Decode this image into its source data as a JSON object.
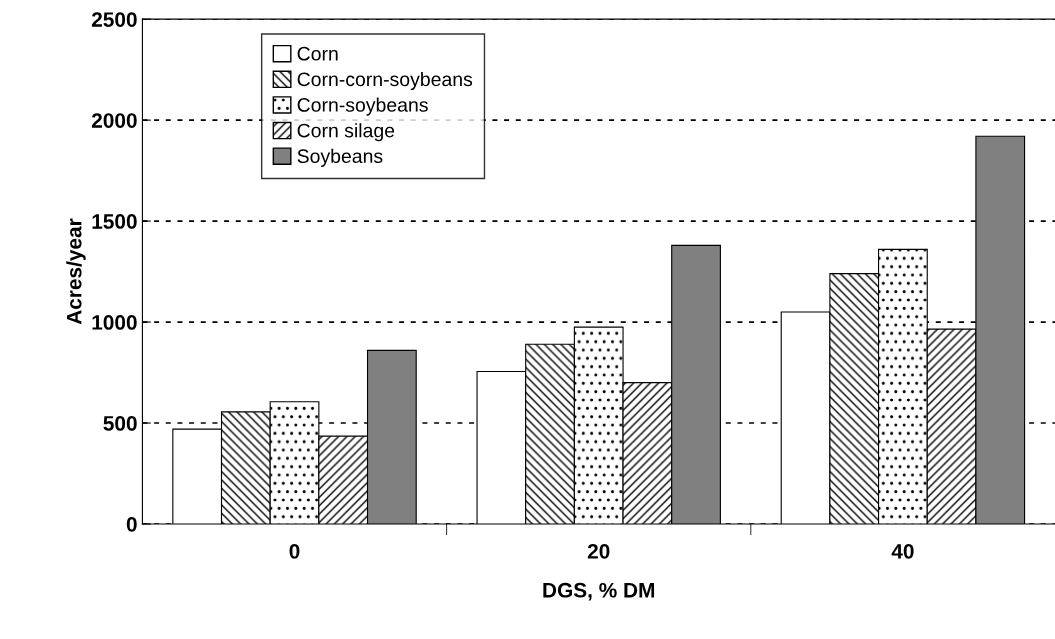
{
  "chart_data": {
    "type": "bar",
    "xlabel": "DGS, % DM",
    "ylabel": "Acres/year",
    "categories": [
      "0",
      "20",
      "40"
    ],
    "series": [
      {
        "name": "Corn",
        "color": "#ffffff",
        "values": [
          470,
          755,
          1050
        ]
      },
      {
        "name": "Corn-corn-soybeans",
        "color": "#000000",
        "values": [
          555,
          890,
          1240
        ]
      },
      {
        "name": "Corn-soybeans",
        "color": "#000000",
        "values": [
          605,
          975,
          1360
        ]
      },
      {
        "name": "Corn silage",
        "color": "#000000",
        "values": [
          435,
          700,
          965
        ]
      },
      {
        "name": "Soybeans",
        "color": "#808080",
        "values": [
          860,
          1380,
          1920
        ]
      }
    ],
    "ylim": [
      0,
      2500
    ],
    "yticks": [
      0,
      500,
      1000,
      1500,
      2000,
      2500
    ],
    "grid": "y",
    "legend": "top left"
  }
}
